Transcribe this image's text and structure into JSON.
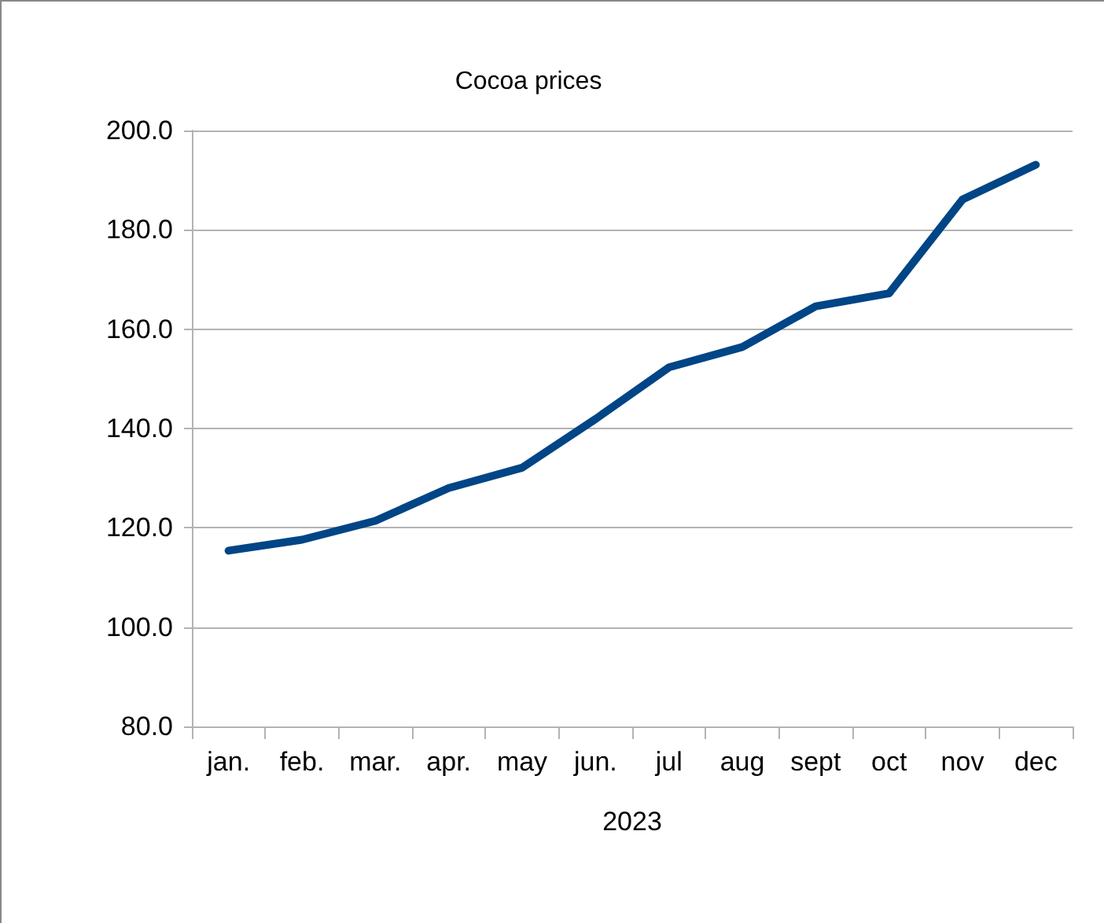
{
  "chart_data": {
    "type": "line",
    "title": "Cocoa prices",
    "xlabel": "2023",
    "categories": [
      "jan.",
      "feb.",
      "mar.",
      "apr.",
      "may",
      "jun.",
      "jul",
      "aug",
      "sept",
      "oct",
      "nov",
      "dec"
    ],
    "series": [
      {
        "color": "#004586",
        "values": [
          115.4,
          117.6,
          121.4,
          128.0,
          132.1,
          141.9,
          152.3,
          156.4,
          164.6,
          167.2,
          186.1,
          193.1
        ]
      }
    ],
    "ylim": [
      80,
      200
    ],
    "yticks": [
      {
        "value": 80,
        "label": "80.0"
      },
      {
        "value": 100,
        "label": "100.0"
      },
      {
        "value": 120,
        "label": "120.0"
      },
      {
        "value": 140,
        "label": "140.0"
      },
      {
        "value": 160,
        "label": "160.0"
      },
      {
        "value": 180,
        "label": "180.0"
      },
      {
        "value": 200,
        "label": "200.0"
      }
    ],
    "grid": "y",
    "marker": "none",
    "line_style": "solid"
  }
}
